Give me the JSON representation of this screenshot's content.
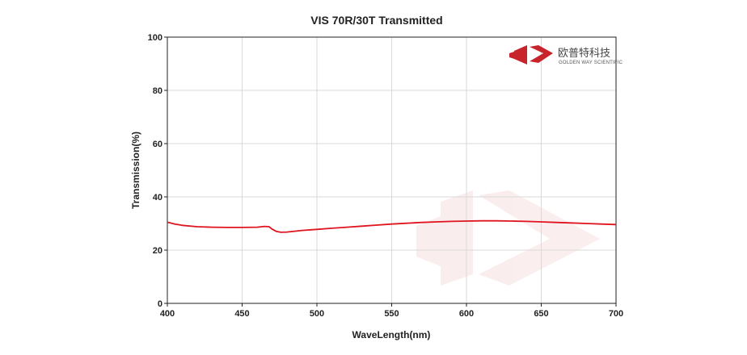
{
  "chart_data": {
    "type": "line",
    "title": "VIS 70R/30T Transmitted",
    "xlabel": "WaveLength(nm)",
    "ylabel": "Transmission(%)",
    "xlim": [
      400,
      700
    ],
    "ylim": [
      0,
      100
    ],
    "xticks": [
      "400",
      "450",
      "500",
      "550",
      "600",
      "650",
      "700"
    ],
    "yticks": [
      "0",
      "20",
      "40",
      "60",
      "80",
      "100"
    ],
    "grid": true,
    "series": [
      {
        "color": "#e0141e",
        "x": [
          400,
          405,
          410,
          420,
          430,
          440,
          450,
          460,
          465,
          468,
          470,
          473,
          476,
          480,
          485,
          490,
          500,
          510,
          520,
          530,
          540,
          550,
          560,
          570,
          580,
          590,
          600,
          610,
          620,
          630,
          640,
          650,
          660,
          670,
          680,
          690,
          700
        ],
        "y": [
          30.5,
          29.8,
          29.3,
          28.8,
          28.6,
          28.5,
          28.5,
          28.6,
          28.9,
          28.8,
          27.9,
          27.0,
          26.7,
          26.8,
          27.1,
          27.4,
          27.8,
          28.2,
          28.6,
          29.0,
          29.4,
          29.8,
          30.1,
          30.4,
          30.6,
          30.8,
          30.9,
          31.0,
          31.0,
          30.9,
          30.8,
          30.6,
          30.4,
          30.2,
          30.0,
          29.8,
          29.6
        ]
      }
    ]
  },
  "logo": {
    "name_cn": "欧普特科技",
    "name_en": "GOLDEN WAY SCIENTIFIC",
    "color": "#c8242c"
  }
}
